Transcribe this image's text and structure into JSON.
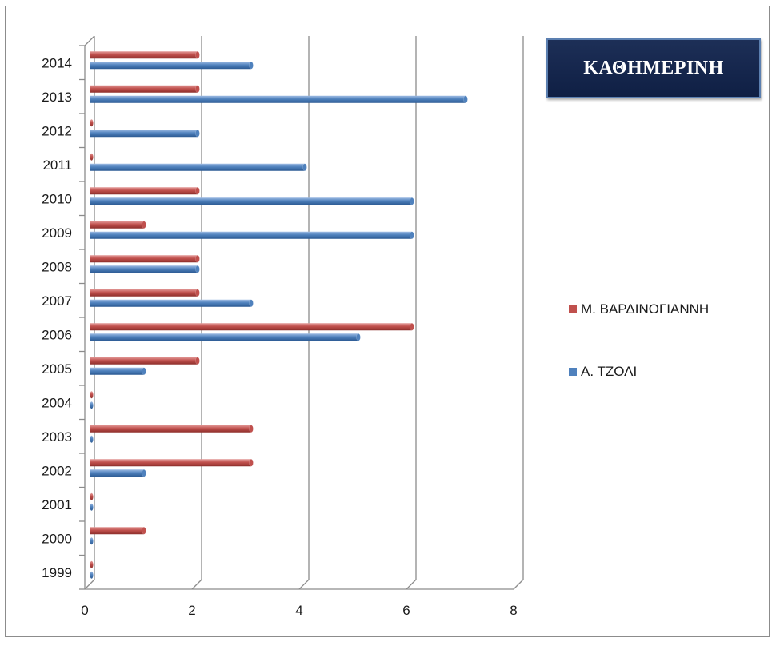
{
  "title": "ΚΑΘΗΜΕΡΙΝΗ",
  "chart_data": {
    "type": "bar",
    "orientation": "horizontal",
    "categories": [
      "1999",
      "2000",
      "2001",
      "2002",
      "2003",
      "2004",
      "2005",
      "2006",
      "2007",
      "2008",
      "2009",
      "2010",
      "2011",
      "2012",
      "2013",
      "2014"
    ],
    "series": [
      {
        "name": "Μ. ΒΑΡΔΙΝΟΓΙΑΝΝΗ",
        "color": "#c0504d",
        "values": [
          0,
          1,
          0,
          3,
          3,
          0,
          2,
          6,
          2,
          2,
          1,
          2,
          0,
          0,
          2,
          2
        ]
      },
      {
        "name": "Α. ΤΖΟΛΙ",
        "color": "#4f81bd",
        "values": [
          0,
          0,
          0,
          1,
          0,
          0,
          1,
          5,
          3,
          2,
          6,
          6,
          4,
          2,
          7,
          3
        ]
      }
    ],
    "xlim": [
      0,
      8
    ],
    "xticks": [
      "0",
      "2",
      "4",
      "6",
      "8"
    ],
    "grid": true,
    "legend_position": "right"
  }
}
